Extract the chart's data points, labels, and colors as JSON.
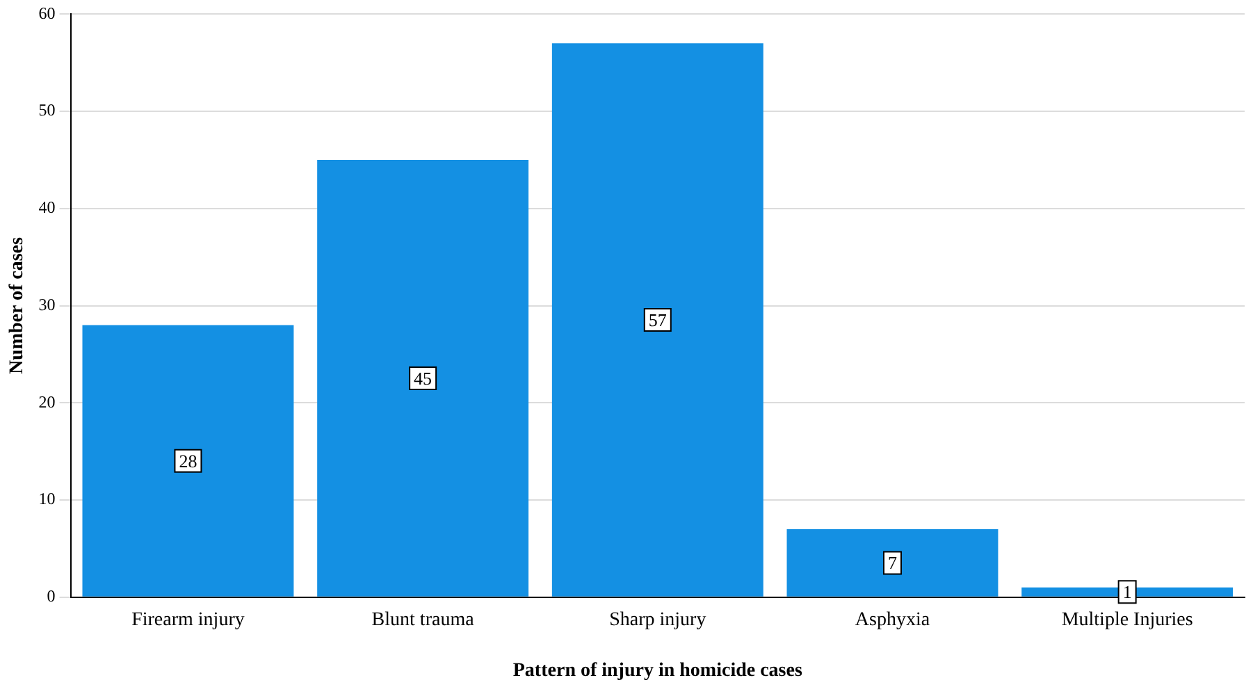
{
  "chart_data": {
    "type": "bar",
    "xlabel": "Pattern of injury in homicide cases",
    "ylabel": "Number of cases",
    "categories": [
      "Firearm injury",
      "Blunt trauma",
      "Sharp injury",
      "Asphyxia",
      "Multiple Injuries"
    ],
    "values": [
      28,
      45,
      57,
      7,
      1
    ],
    "color": "#1490e3",
    "ylim": [
      0,
      60
    ],
    "yticks": [
      0,
      10,
      20,
      30,
      40,
      50,
      60
    ],
    "grid": "y",
    "data_labels": true
  }
}
